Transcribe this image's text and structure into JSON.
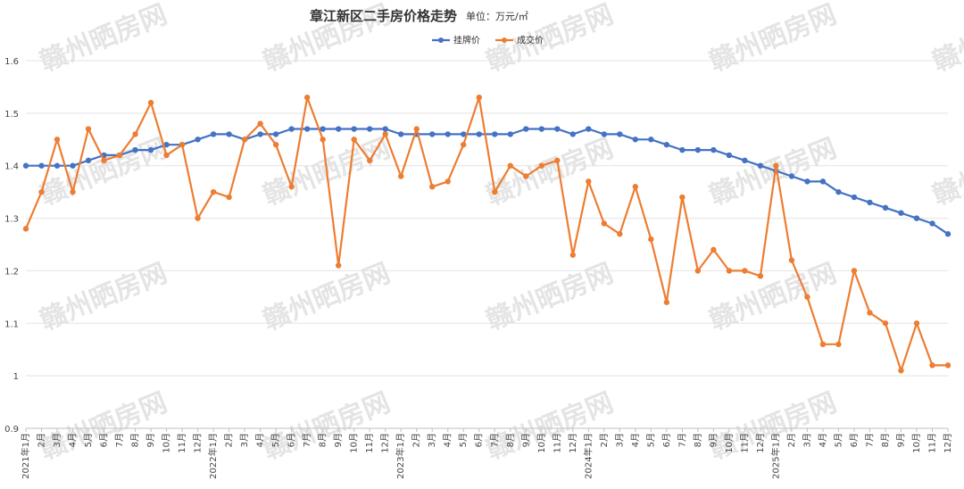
{
  "chart_data": {
    "type": "line",
    "title": "章江新区二手房价格走势",
    "subtitle": "单位：万元/㎡",
    "ylim": [
      0.9,
      1.6
    ],
    "yticks": [
      "0.9",
      "1",
      "1.1",
      "1.2",
      "1.3",
      "1.4",
      "1.5",
      "1.6"
    ],
    "grid": true,
    "legend_position": "top-center",
    "categories": [
      "2021年1月",
      "2月",
      "3月",
      "4月",
      "5月",
      "6月",
      "7月",
      "8月",
      "9月",
      "10月",
      "11月",
      "12月",
      "2022年1月",
      "2月",
      "3月",
      "4月",
      "5月",
      "6月",
      "7月",
      "8月",
      "9月",
      "10月",
      "11月",
      "12月",
      "2023年1月",
      "2月",
      "3月",
      "4月",
      "5月",
      "6月",
      "7月",
      "8月",
      "9月",
      "10月",
      "11月",
      "12月",
      "2024年1月",
      "2月",
      "3月",
      "4月",
      "5月",
      "6月",
      "7月",
      "8月",
      "9月",
      "10月",
      "11月",
      "12月",
      "2025年1月",
      "2月",
      "3月",
      "4月",
      "5月",
      "6月",
      "7月",
      "8月",
      "9月",
      "10月",
      "11月",
      "12月"
    ],
    "series": [
      {
        "name": "挂牌价",
        "color": "#4472C4",
        "values": [
          1.4,
          1.4,
          1.4,
          1.4,
          1.41,
          1.42,
          1.42,
          1.43,
          1.43,
          1.44,
          1.44,
          1.45,
          1.46,
          1.46,
          1.45,
          1.46,
          1.46,
          1.47,
          1.47,
          1.47,
          1.47,
          1.47,
          1.47,
          1.47,
          1.46,
          1.46,
          1.46,
          1.46,
          1.46,
          1.46,
          1.46,
          1.46,
          1.47,
          1.47,
          1.47,
          1.46,
          1.47,
          1.46,
          1.46,
          1.45,
          1.45,
          1.44,
          1.43,
          1.43,
          1.43,
          1.42,
          1.41,
          1.4,
          1.39,
          1.38,
          1.37,
          1.37,
          1.35,
          1.34,
          1.33,
          1.32,
          1.31,
          1.3,
          1.29,
          1.27
        ]
      },
      {
        "name": "成交价",
        "color": "#ED7D31",
        "values": [
          1.28,
          1.35,
          1.45,
          1.35,
          1.47,
          1.41,
          1.42,
          1.46,
          1.52,
          1.42,
          1.44,
          1.3,
          1.35,
          1.34,
          1.45,
          1.48,
          1.44,
          1.36,
          1.53,
          1.45,
          1.21,
          1.45,
          1.41,
          1.46,
          1.38,
          1.47,
          1.36,
          1.37,
          1.44,
          1.53,
          1.35,
          1.4,
          1.38,
          1.4,
          1.41,
          1.23,
          1.37,
          1.29,
          1.27,
          1.36,
          1.26,
          1.14,
          1.34,
          1.2,
          1.24,
          1.2,
          1.2,
          1.19,
          1.4,
          1.22,
          1.15,
          1.06,
          1.06,
          1.2,
          1.12,
          1.1,
          1.01,
          1.1,
          1.02,
          1.02
        ]
      }
    ]
  },
  "watermark": {
    "text": "赣州晒房网"
  }
}
